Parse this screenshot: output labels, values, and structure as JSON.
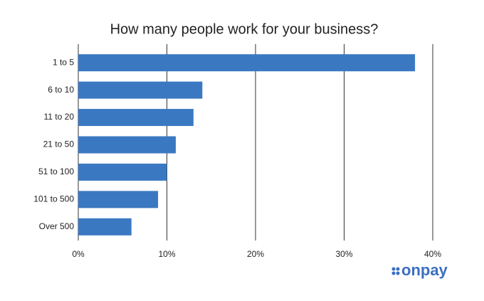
{
  "chart_data": {
    "type": "hbar",
    "title": "How many people work for your business?",
    "categories": [
      "1 to 5",
      "6 to 10",
      "11 to 20",
      "21 to 50",
      "51 to 100",
      "101 to 500",
      "Over 500"
    ],
    "values": [
      38,
      14,
      13,
      11,
      10,
      9,
      6
    ],
    "color": "#3b78c2",
    "xlim": [
      0,
      40
    ],
    "xticks": [
      {
        "value": 0,
        "label": "0%"
      },
      {
        "value": 10,
        "label": "10%"
      },
      {
        "value": 20,
        "label": "20%"
      },
      {
        "value": 30,
        "label": "30%"
      },
      {
        "value": 40,
        "label": "40%"
      }
    ],
    "grid": true
  },
  "logo": "onpay"
}
